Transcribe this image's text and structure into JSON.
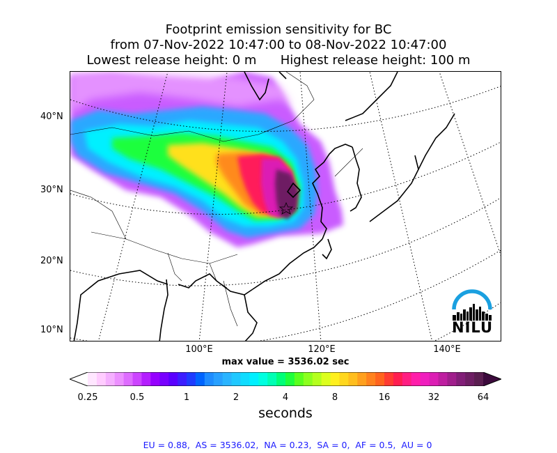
{
  "title": {
    "line1": "Footprint emission sensitivity for BC",
    "line2": "from 07-Nov-2022 10:47:00 to 08-Nov-2022 10:47:00",
    "line3": "Lowest release height: 0 m      Highest release height: 100 m"
  },
  "map": {
    "lat_labels": [
      "40°N",
      "30°N",
      "20°N",
      "10°N"
    ],
    "lon_labels": [
      "100°E",
      "120°E",
      "140°E"
    ],
    "max_value_text": "max value = 3536.02 sec",
    "logo_text": "NILU",
    "logo_icon": "nilu-skyline-logo",
    "logo_arc_color": "#1aa0e0"
  },
  "colorbar": {
    "tick_labels": [
      "0.25",
      "0.5",
      "1",
      "2",
      "4",
      "8",
      "16",
      "32",
      "64"
    ],
    "units": "seconds",
    "colors": [
      "#ffe6ff",
      "#ffccff",
      "#f5b0ff",
      "#ec90ff",
      "#de6cff",
      "#cc44ff",
      "#b41eff",
      "#9600ff",
      "#7800ff",
      "#5a00ff",
      "#3c1eff",
      "#1e3cff",
      "#0064ff",
      "#1e8cff",
      "#28a0ff",
      "#2ab4ff",
      "#20c8ff",
      "#10dcff",
      "#00f0ff",
      "#00ffe0",
      "#00ffb4",
      "#00ff78",
      "#1eff3c",
      "#5aff1e",
      "#8cff1e",
      "#b4ff1e",
      "#dcff1e",
      "#fff01e",
      "#ffd71e",
      "#ffbe1e",
      "#ffa01e",
      "#ff821e",
      "#ff641e",
      "#ff3c32",
      "#ff1e50",
      "#ff1e82",
      "#ff1eaa",
      "#f01ebe",
      "#dc1eb4",
      "#be1ea0",
      "#a01e8c",
      "#821e78",
      "#6e1e64",
      "#5a1e50"
    ]
  },
  "region_stats": "EU = 0.88,  AS = 3536.02,  NA = 0.23,  SA = 0,  AF = 0.5,  AU = 0"
}
